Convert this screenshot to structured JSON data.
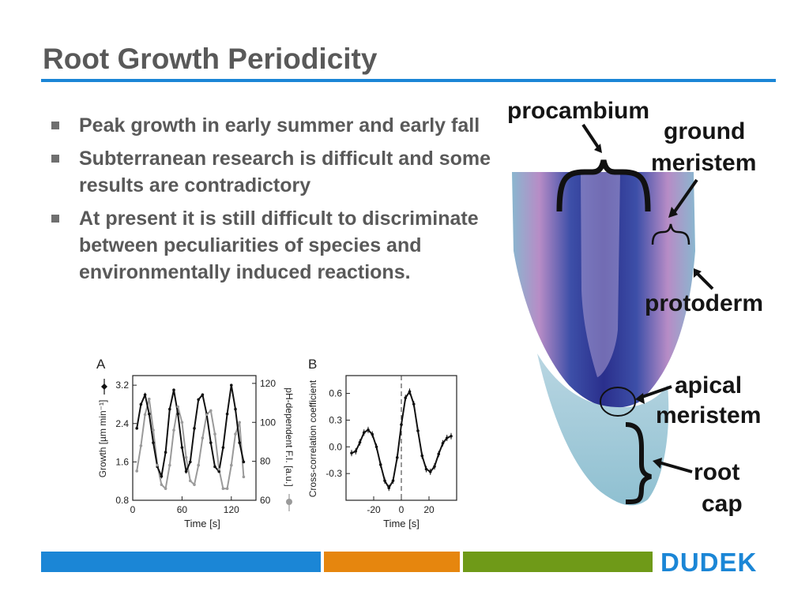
{
  "slide": {
    "title": "Root Growth Periodicity",
    "bullets": [
      "Peak growth in early summer and early fall",
      "Subterranean research is difficult and some results are contradictory",
      "At present it is still difficult to discriminate between peculiarities of species and environmentally induced reactions."
    ],
    "logo_text": "DUDEK",
    "colors": {
      "accent_blue": "#1b86d6",
      "footer_orange": "#e6860e",
      "footer_green": "#6f9a18",
      "text_gray": "#595959"
    }
  },
  "root_diagram": {
    "labels": {
      "procambium": "procambium",
      "ground_meristem_1": "ground",
      "ground_meristem_2": "meristem",
      "protoderm": "protoderm",
      "apical_meristem_1": "apical",
      "apical_meristem_2": "meristem",
      "root_cap_1": "root",
      "root_cap_2": "cap"
    }
  },
  "chart_data": [
    {
      "panel_label": "A",
      "type": "line",
      "xlabel": "Time [s]",
      "ylabel_left": "Growth [µm min⁻¹]",
      "ylabel_right": "pH-dependent F.I. [a.u.]",
      "xlim": [
        0,
        150
      ],
      "xticks": [
        0,
        60,
        120
      ],
      "ylim_left": [
        0.8,
        3.4
      ],
      "yticks_left": [
        "0.8",
        "1.6",
        "2.4",
        "3.2"
      ],
      "ylim_right": [
        60,
        124
      ],
      "yticks_right": [
        "60",
        "80",
        "100",
        "120"
      ],
      "series": [
        {
          "axis": "left",
          "color": "#111111",
          "x": [
            5,
            10,
            15,
            20,
            25,
            30,
            35,
            40,
            45,
            50,
            55,
            60,
            65,
            70,
            75,
            80,
            85,
            90,
            95,
            100,
            105,
            110,
            115,
            120,
            125,
            130,
            135
          ],
          "values": [
            2.3,
            2.8,
            3.0,
            2.6,
            2.0,
            1.5,
            1.3,
            1.8,
            2.7,
            3.1,
            2.6,
            1.9,
            1.4,
            1.6,
            2.3,
            2.9,
            3.0,
            2.6,
            2.0,
            1.5,
            1.4,
            1.9,
            2.6,
            3.2,
            2.7,
            2.0,
            1.6
          ]
        },
        {
          "axis": "right",
          "color": "#9a9a9a",
          "x": [
            5,
            10,
            15,
            20,
            25,
            30,
            35,
            40,
            45,
            50,
            55,
            60,
            65,
            70,
            75,
            80,
            85,
            90,
            95,
            100,
            105,
            110,
            115,
            120,
            125,
            130,
            135
          ],
          "values": [
            75,
            88,
            104,
            112,
            96,
            78,
            68,
            66,
            78,
            96,
            108,
            100,
            82,
            70,
            68,
            78,
            92,
            104,
            106,
            94,
            76,
            66,
            66,
            78,
            94,
            100,
            72
          ]
        }
      ]
    },
    {
      "panel_label": "B",
      "type": "line",
      "xlabel": "Time [s]",
      "ylabel": "Cross-correlation coefficient",
      "xlim": [
        -40,
        40
      ],
      "xticks": [
        -20,
        0,
        20
      ],
      "ylim": [
        -0.6,
        0.8
      ],
      "yticks": [
        "0.6",
        "0.3",
        "0.0",
        "-0.3"
      ],
      "series": [
        {
          "color": "#111111",
          "x": [
            -36,
            -33,
            -30,
            -27,
            -24,
            -21,
            -18,
            -15,
            -12,
            -9,
            -6,
            -3,
            0,
            3,
            6,
            9,
            12,
            15,
            18,
            21,
            24,
            27,
            30,
            33,
            36
          ],
          "values": [
            -0.07,
            -0.05,
            0.05,
            0.16,
            0.19,
            0.14,
            0.0,
            -0.2,
            -0.38,
            -0.46,
            -0.38,
            -0.12,
            0.25,
            0.55,
            0.62,
            0.48,
            0.18,
            -0.1,
            -0.25,
            -0.28,
            -0.22,
            -0.08,
            0.04,
            0.1,
            0.12
          ]
        }
      ],
      "zero_line": "dashed"
    }
  ]
}
